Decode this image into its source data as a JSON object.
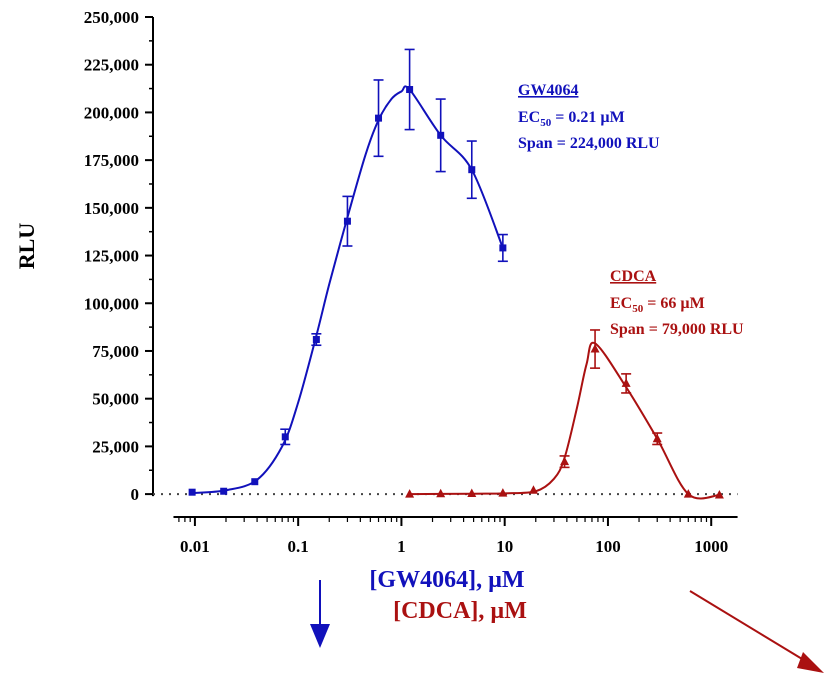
{
  "chart_data": {
    "type": "scatter",
    "xlabel_lines": [
      "[GW4064], µM",
      "[CDCA], µM"
    ],
    "ylabel": "RLU",
    "x_scale": "log",
    "xlim": [
      0.006,
      1900
    ],
    "ylim": [
      -12000,
      250000
    ],
    "x_ticks": [
      0.01,
      0.1,
      1,
      10,
      100,
      1000
    ],
    "x_tick_labels": [
      "0.01",
      "0.1",
      "1",
      "10",
      "100",
      "1000"
    ],
    "y_ticks": [
      0,
      25000,
      50000,
      75000,
      100000,
      125000,
      150000,
      175000,
      200000,
      225000,
      250000
    ],
    "y_tick_labels": [
      "0",
      "25,000",
      "50,000",
      "75,000",
      "100,000",
      "125,000",
      "150,000",
      "175,000",
      "200,000",
      "225,000",
      "250,000"
    ],
    "baseline": 0,
    "series": [
      {
        "name": "GW4064",
        "color": "#1111bb",
        "marker": "square",
        "x": [
          0.0094,
          0.019,
          0.038,
          0.075,
          0.15,
          0.3,
          0.6,
          1.2,
          2.4,
          4.8,
          9.6
        ],
        "y": [
          1000,
          1500,
          6500,
          30000,
          81000,
          143000,
          197000,
          212000,
          188000,
          170000,
          129000
        ],
        "err": [
          0,
          0,
          0,
          4000,
          3000,
          13000,
          20000,
          21000,
          19000,
          15000,
          7000
        ],
        "curve_x": [
          0.0094,
          0.02,
          0.04,
          0.07,
          0.1,
          0.15,
          0.2,
          0.3,
          0.45,
          0.6,
          0.8,
          1.0,
          1.2,
          2.4,
          4.8,
          9.6
        ],
        "curve_y": [
          500,
          2000,
          7500,
          25000,
          48000,
          83000,
          110000,
          145000,
          178000,
          196000,
          207000,
          211000,
          212000,
          188000,
          170000,
          129000
        ],
        "annotation": [
          "GW4064",
          "EC50 = 0.21 µM",
          "Span = 224,000 RLU"
        ]
      },
      {
        "name": "CDCA",
        "color": "#aa1111",
        "marker": "triangle",
        "x": [
          1.2,
          2.4,
          4.8,
          9.6,
          19,
          38,
          75,
          150,
          300,
          600,
          1200
        ],
        "y": [
          0,
          200,
          300,
          500,
          2000,
          17000,
          76000,
          58000,
          29000,
          0,
          -500
        ],
        "err": [
          0,
          0,
          0,
          0,
          0,
          3000,
          10000,
          5000,
          3000,
          0,
          0
        ],
        "curve_x": [
          1.2,
          5,
          10,
          20,
          30,
          38,
          50,
          62,
          75,
          150,
          300,
          600,
          1200
        ],
        "curve_y": [
          0,
          200,
          400,
          1500,
          8000,
          19000,
          45000,
          68000,
          79000,
          56000,
          29000,
          0,
          -500
        ],
        "annotation": [
          "CDCA",
          "EC50 = 66 µM",
          "Span = 79,000 RLU"
        ]
      }
    ]
  }
}
